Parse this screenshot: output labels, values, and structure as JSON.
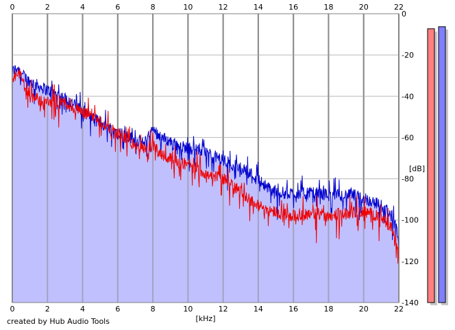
{
  "chart_data": {
    "type": "area",
    "title": "",
    "xlabel": "[kHz]",
    "ylabel": "[dB]",
    "xlim": [
      0,
      22
    ],
    "ylim": [
      -140,
      0
    ],
    "x_ticks": [
      0,
      2,
      4,
      6,
      8,
      10,
      12,
      14,
      16,
      18,
      20,
      22
    ],
    "y_ticks": [
      0,
      -20,
      -40,
      -60,
      -80,
      -100,
      -120,
      -140
    ],
    "grid": true,
    "legend": "none",
    "series": [
      {
        "color": "#0000cc",
        "fill": "#c0c0ff",
        "x": [
          0,
          0.3,
          0.6,
          1,
          1.5,
          2,
          2.5,
          3,
          3.5,
          4,
          4.5,
          5,
          5.5,
          6,
          6.5,
          7,
          7.5,
          8,
          8.5,
          9,
          9.5,
          10,
          10.5,
          11,
          11.5,
          12,
          12.5,
          13,
          13.5,
          14,
          14.5,
          15,
          15.5,
          16,
          16.5,
          17,
          17.5,
          18,
          18.5,
          19,
          19.5,
          20,
          20.5,
          21,
          21.3,
          21.6,
          21.8,
          22
        ],
        "values": [
          -28,
          -26,
          -30,
          -33,
          -35,
          -37,
          -39,
          -41,
          -44,
          -47,
          -50,
          -53,
          -55,
          -57,
          -59,
          -61,
          -63,
          -56,
          -60,
          -62,
          -64,
          -65,
          -66,
          -67,
          -69,
          -71,
          -73,
          -75,
          -77,
          -80,
          -84,
          -86,
          -87,
          -87,
          -87,
          -87,
          -87,
          -88,
          -88,
          -88,
          -88,
          -90,
          -91,
          -93,
          -95,
          -98,
          -103,
          -110
        ]
      },
      {
        "color": "#ee0000",
        "x": [
          0,
          0.3,
          0.6,
          1,
          1.5,
          2,
          2.5,
          3,
          3.5,
          4,
          4.5,
          5,
          5.5,
          6,
          6.5,
          7,
          7.5,
          8,
          8.5,
          9,
          9.5,
          10,
          10.5,
          11,
          11.5,
          12,
          12.5,
          13,
          13.5,
          14,
          14.5,
          15,
          15.5,
          16,
          16.5,
          17,
          17.5,
          18,
          18.5,
          19,
          19.5,
          20,
          20.5,
          21,
          21.3,
          21.6,
          21.8,
          22
        ],
        "values": [
          -35,
          -28,
          -32,
          -40,
          -42,
          -43,
          -42,
          -43,
          -46,
          -48,
          -49,
          -52,
          -56,
          -58,
          -61,
          -64,
          -66,
          -64,
          -68,
          -70,
          -72,
          -73,
          -75,
          -77,
          -79,
          -80,
          -83,
          -86,
          -90,
          -93,
          -95,
          -96,
          -97,
          -98,
          -97,
          -97,
          -97,
          -98,
          -97,
          -97,
          -96,
          -96,
          -97,
          -99,
          -101,
          -104,
          -110,
          -116
        ]
      }
    ]
  },
  "meters": [
    {
      "color": "#ff8080",
      "level_db": -6
    },
    {
      "color": "#8080ff",
      "level_db": -5
    }
  ],
  "credit": "created by Hub Audio Tools"
}
